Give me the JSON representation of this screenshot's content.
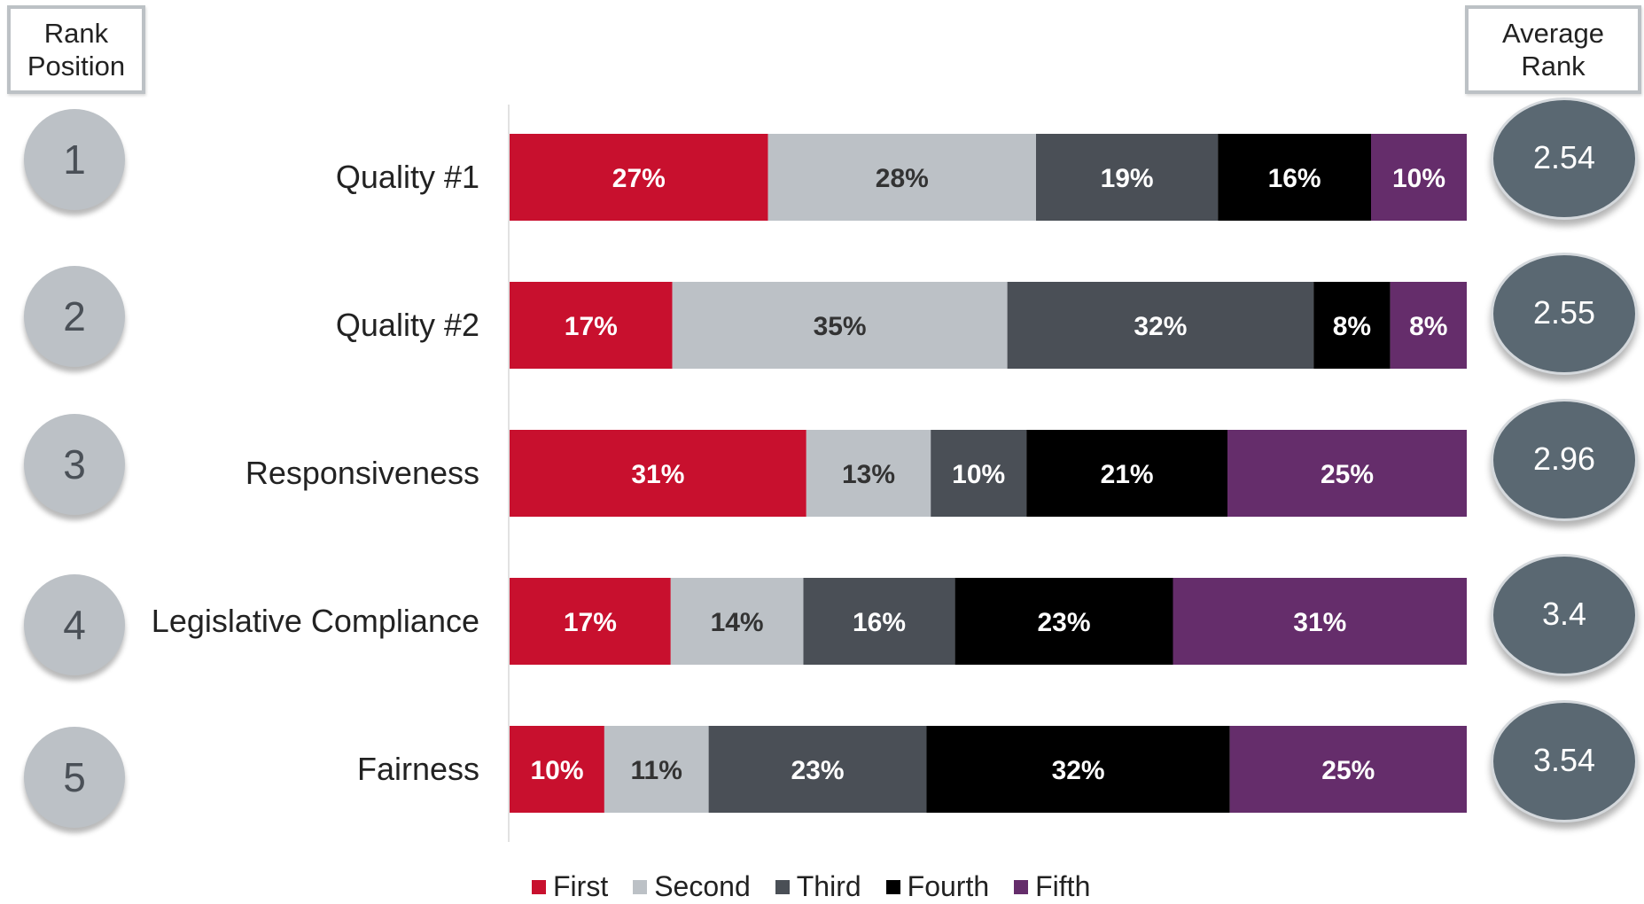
{
  "headers": {
    "rank_line1": "Rank",
    "rank_line2": "Position",
    "avg_line1": "Average",
    "avg_line2": "Rank"
  },
  "chart_data": {
    "type": "bar",
    "orientation": "horizontal",
    "stacked": true,
    "categories": [
      "Quality #1",
      "Quality #2",
      "Responsiveness",
      "Legislative Compliance",
      "Fairness"
    ],
    "rank_positions": [
      "1",
      "2",
      "3",
      "4",
      "5"
    ],
    "average_rank": [
      "2.54",
      "2.55",
      "2.96",
      "3.4",
      "3.54"
    ],
    "series": [
      {
        "name": "First",
        "color": "#c8102e",
        "label_color": "#ffffff",
        "values": [
          27,
          17,
          31,
          17,
          10
        ],
        "labels": [
          "27%",
          "17%",
          "31%",
          "17%",
          "10%"
        ]
      },
      {
        "name": "Second",
        "color": "#bcc1c6",
        "label_color": "#333333",
        "values": [
          28,
          35,
          13,
          14,
          11
        ],
        "labels": [
          "28%",
          "35%",
          "13%",
          "14%",
          "11%"
        ]
      },
      {
        "name": "Third",
        "color": "#4a4f56",
        "label_color": "#ffffff",
        "values": [
          19,
          32,
          10,
          16,
          23
        ],
        "labels": [
          "19%",
          "32%",
          "10%",
          "16%",
          "23%"
        ]
      },
      {
        "name": "Fourth",
        "color": "#000000",
        "label_color": "#ffffff",
        "values": [
          16,
          8,
          21,
          23,
          32
        ],
        "labels": [
          "16%",
          "8%",
          "21%",
          "23%",
          "32%"
        ]
      },
      {
        "name": "Fifth",
        "color": "#652d6b",
        "label_color": "#ffffff",
        "values": [
          10,
          8,
          25,
          31,
          25
        ],
        "labels": [
          "10%",
          "8%",
          "25%",
          "31%",
          "25%"
        ]
      }
    ],
    "xlim": [
      0,
      100
    ],
    "legend": "bottom"
  }
}
